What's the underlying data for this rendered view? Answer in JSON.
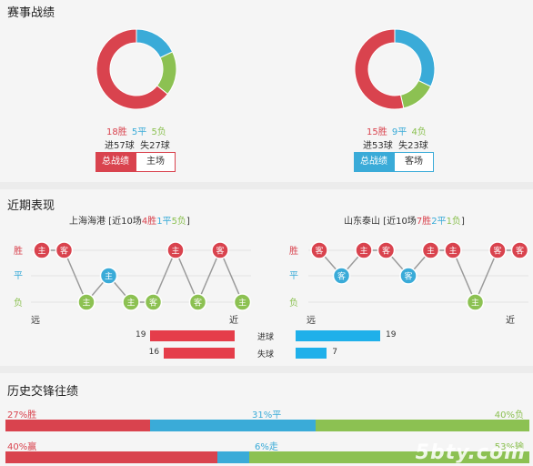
{
  "colors": {
    "win": "#d9434e",
    "draw": "#3aabd8",
    "loss": "#8cc152",
    "grey": "#cfcfcf",
    "home_bar": "#e53d4a",
    "away_bar": "#1fb0ea"
  },
  "record": {
    "title": "赛事战绩",
    "teams": [
      {
        "wins": 18,
        "draws": 5,
        "losses": 5,
        "win_text": "18胜",
        "draw_text": "5平",
        "loss_text": "5负",
        "goals_text": "进57球  失27球",
        "tab_total": "总战绩",
        "tab_venue": "主场"
      },
      {
        "wins": 15,
        "draws": 9,
        "losses": 4,
        "win_text": "15胜",
        "draw_text": "9平",
        "loss_text": "4负",
        "goals_text": "进53球  失23球",
        "tab_total": "总战绩",
        "tab_venue": "客场"
      }
    ]
  },
  "recent": {
    "title": "近期表现",
    "y_labels": {
      "win": "胜",
      "draw": "平",
      "loss": "负"
    },
    "far_label": "远",
    "near_label": "近",
    "teams": [
      {
        "name": "上海海港",
        "pre": " [近10场",
        "w": "4胜",
        "d": "1平",
        "l": "5负",
        "post": "]",
        "results": [
          "W",
          "W",
          "L",
          "D",
          "L",
          "L",
          "W",
          "L",
          "W",
          "L"
        ],
        "venues": [
          "主",
          "客",
          "主",
          "主",
          "主",
          "客",
          "主",
          "客",
          "客",
          "主"
        ]
      },
      {
        "name": "山东泰山",
        "pre": " [近10场",
        "w": "7胜",
        "d": "2平",
        "l": "1负",
        "post": "]",
        "results": [
          "W",
          "D",
          "W",
          "W",
          "D",
          "W",
          "W",
          "L",
          "W",
          "W"
        ],
        "venues": [
          "客",
          "客",
          "主",
          "客",
          "客",
          "主",
          "主",
          "主",
          "客",
          "客"
        ]
      }
    ],
    "goals_for_label": "进球",
    "goals_against_label": "失球",
    "home_goals_for": 19,
    "home_goals_against": 16,
    "away_goals_for": 19,
    "away_goals_against": 7
  },
  "history": {
    "title": "历史交锋往绩",
    "row1": {
      "win_pct": 27,
      "draw_pct": 31,
      "loss_pct": 40,
      "win_text": "27%胜",
      "draw_text": "31%平",
      "loss_text": "40%负"
    },
    "row2": {
      "win_pct": 40,
      "draw_pct": 6,
      "loss_pct": 53,
      "win_text": "40%赢",
      "draw_text": "6%走",
      "loss_text": "53%输"
    }
  },
  "watermark": "5bty.com"
}
